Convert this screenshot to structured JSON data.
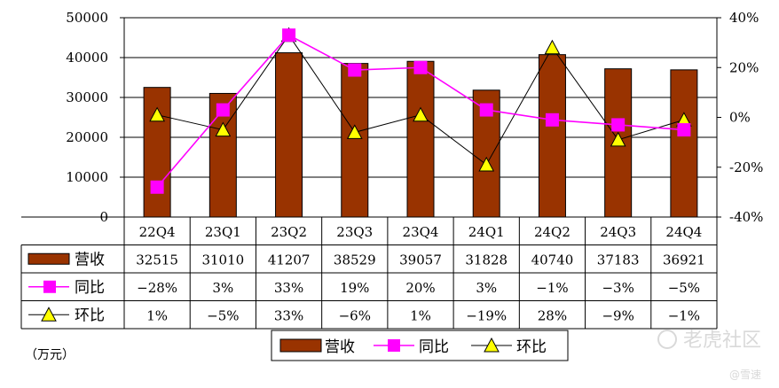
{
  "chart_data": {
    "type": "bar",
    "title": "",
    "categories": [
      "22Q4",
      "23Q1",
      "23Q2",
      "23Q3",
      "23Q4",
      "24Q1",
      "24Q2",
      "24Q3",
      "24Q4"
    ],
    "series": [
      {
        "name": "营收",
        "kind": "bar",
        "axis": "left",
        "color": "#993300",
        "values": [
          32515,
          31010,
          41207,
          38529,
          39057,
          31828,
          40740,
          37183,
          36921
        ]
      },
      {
        "name": "同比",
        "kind": "line",
        "axis": "right",
        "color": "#ff00ff",
        "marker": "square",
        "values": [
          -28,
          3,
          33,
          19,
          20,
          3,
          -1,
          -3,
          -5
        ]
      },
      {
        "name": "环比",
        "kind": "line",
        "axis": "right",
        "color": "#000000",
        "marker": "triangle",
        "marker_fill": "#ffff00",
        "values": [
          1,
          -5,
          33,
          -6,
          1,
          -19,
          28,
          -9,
          -1
        ]
      }
    ],
    "y_left": {
      "lim": [
        0,
        50000
      ],
      "ticks": [
        "0",
        "10000",
        "20000",
        "30000",
        "40000",
        "50000"
      ]
    },
    "y_right": {
      "lim": [
        -40,
        40
      ],
      "ticks": [
        "-40%",
        "-20%",
        "0%",
        "20%",
        "40%"
      ]
    },
    "unit_label": "（万元）",
    "grid": true,
    "legend": {
      "placement": "bottom-center",
      "items": [
        "营收",
        "同比",
        "环比"
      ]
    },
    "data_table": {
      "rows": [
        {
          "label": "营收",
          "cells": [
            "32515",
            "31010",
            "41207",
            "38529",
            "39057",
            "31828",
            "40740",
            "37183",
            "36921"
          ]
        },
        {
          "label": "同比",
          "cells": [
            "−28%",
            "3%",
            "33%",
            "19%",
            "20%",
            "3%",
            "−1%",
            "−3%",
            "−5%"
          ]
        },
        {
          "label": "环比",
          "cells": [
            "1%",
            "−5%",
            "33%",
            "−6%",
            "1%",
            "−19%",
            "28%",
            "−9%",
            "−1%"
          ]
        }
      ]
    }
  },
  "watermark": {
    "text": "老虎社区",
    "subtext": "@雪速"
  }
}
